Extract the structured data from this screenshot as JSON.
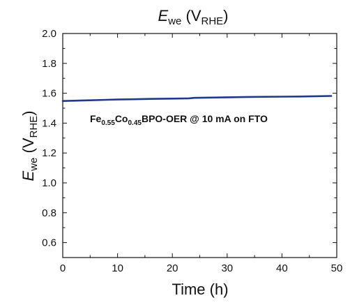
{
  "chart_data": {
    "type": "line",
    "title": {
      "main": "E",
      "sub": "we",
      "unit_open": " (V",
      "unit_sub": "RHE",
      "unit_close": ")"
    },
    "xlabel": "Time (h)",
    "ylabel": {
      "main": "E",
      "sub": "we",
      "unit_open": " (V",
      "unit_sub": "RHE",
      "unit_close": ")"
    },
    "xlim": [
      0,
      50
    ],
    "ylim": [
      0.5,
      2.0
    ],
    "xticks": [
      0,
      10,
      20,
      30,
      40,
      50
    ],
    "xtick_labels": [
      "0",
      "10",
      "20",
      "30",
      "40",
      "50"
    ],
    "yticks": [
      0.6,
      0.8,
      1.0,
      1.2,
      1.4,
      1.6,
      1.8,
      2.0
    ],
    "ytick_labels": [
      "0.6",
      "0.8",
      "1.0",
      "1.2",
      "1.4",
      "1.6",
      "1.8",
      "2.0"
    ],
    "grid": false,
    "annotation": {
      "parts": [
        "Fe",
        "0.55",
        "Co",
        "0.45",
        "BPO-OER @ 10 mA on FTO"
      ]
    },
    "series": [
      {
        "color": "#1f3a8a",
        "x": [
          0,
          2,
          5,
          8,
          10,
          13,
          16,
          20,
          23,
          24,
          27,
          30,
          34,
          37,
          40,
          43,
          46,
          49
        ],
        "y": [
          1.548,
          1.55,
          1.553,
          1.556,
          1.558,
          1.56,
          1.562,
          1.564,
          1.566,
          1.569,
          1.571,
          1.573,
          1.575,
          1.576,
          1.577,
          1.578,
          1.58,
          1.582
        ]
      }
    ]
  }
}
